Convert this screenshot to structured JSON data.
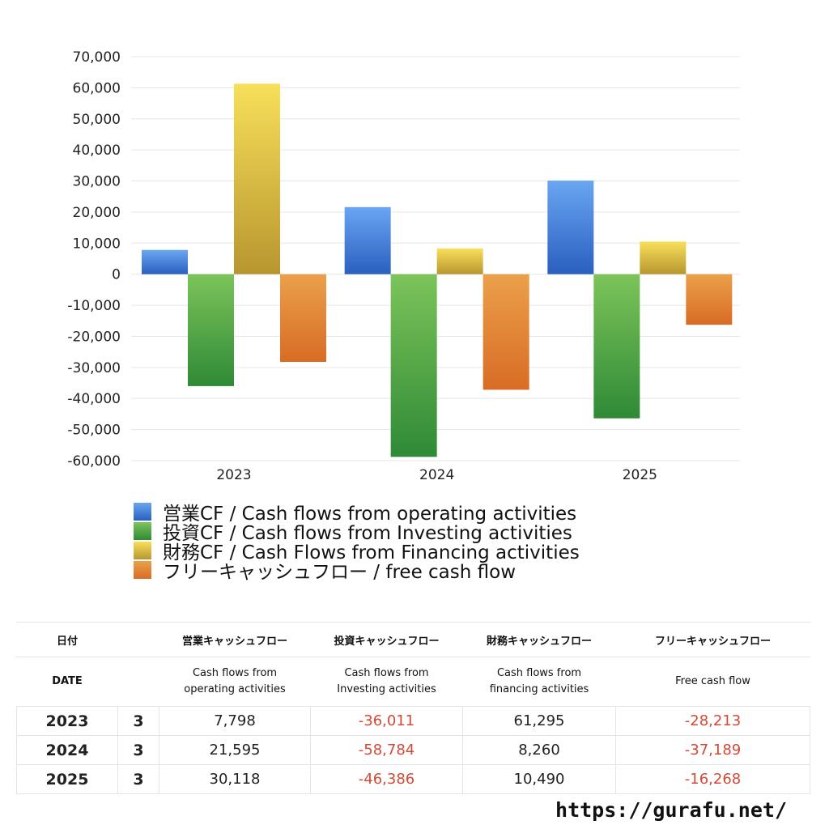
{
  "chart_data": {
    "type": "bar",
    "categories": [
      "2023",
      "2024",
      "2025"
    ],
    "series": [
      {
        "name": "営業CF / Cash flows from operating activities",
        "values": [
          7798,
          21595,
          30118
        ],
        "color": "#3a78d8"
      },
      {
        "name": "投資CF / Cash flows from Investing activities",
        "values": [
          -36011,
          -58784,
          -46386
        ],
        "color": "#4aa444"
      },
      {
        "name": "財務CF / Cash Flows from Financing activities",
        "values": [
          61295,
          8260,
          10490
        ],
        "color": "#e0c23a"
      },
      {
        "name": "フリーキャッシュフロー / free cash flow",
        "values": [
          -28213,
          -37189,
          -16268
        ],
        "color": "#e07f32"
      }
    ],
    "ylim": [
      -60000,
      70000
    ],
    "yticks": [
      "70,000",
      "60,000",
      "50,000",
      "40,000",
      "30,000",
      "20,000",
      "10,000",
      "0",
      "-10,000",
      "-20,000",
      "-30,000",
      "-40,000",
      "-50,000",
      "-60,000"
    ],
    "ytick_values": [
      70000,
      60000,
      50000,
      40000,
      30000,
      20000,
      10000,
      0,
      -10000,
      -20000,
      -30000,
      -40000,
      -50000,
      -60000
    ],
    "grid": true,
    "legend_position": "bottom-left"
  },
  "table": {
    "headers_ja": [
      "日付",
      "",
      "営業キャッシュフロー",
      "投資キャッシュフロー",
      "財務キャッシュフロー",
      "フリーキャッシュフロー"
    ],
    "headers_en": [
      "DATE",
      "",
      "Cash flows from\noperating activities",
      "Cash flows from\nInvesting activities",
      "Cash flows from\nfinancing activities",
      "Free cash flow"
    ],
    "rows": [
      {
        "year": "2023",
        "month": "3",
        "operating": "7,798",
        "investing": "-36,011",
        "financing": "61,295",
        "free": "-28,213"
      },
      {
        "year": "2024",
        "month": "3",
        "operating": "21,595",
        "investing": "-58,784",
        "financing": "8,260",
        "free": "-37,189"
      },
      {
        "year": "2025",
        "month": "3",
        "operating": "30,118",
        "investing": "-46,386",
        "financing": "10,490",
        "free": "-16,268"
      }
    ]
  },
  "site": "https://gurafu.net/"
}
